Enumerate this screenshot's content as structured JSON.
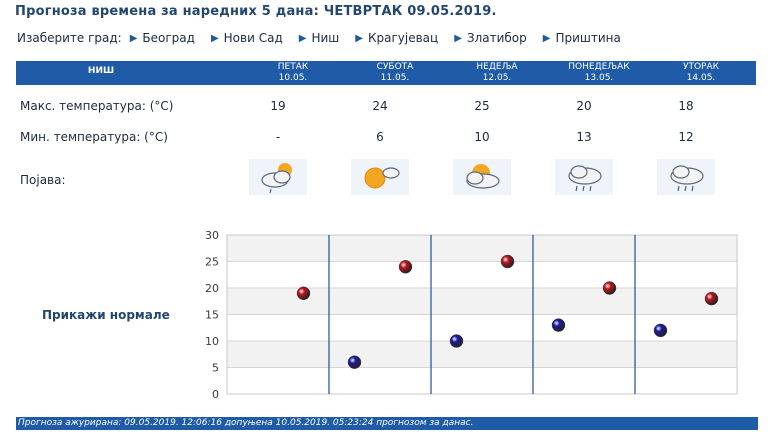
{
  "title": "Прогноза времена за наредних 5 дана: ЧЕТВРТАК  09.05.2019.",
  "city_select": {
    "label": "Изаберите град:",
    "cities": [
      "Београд",
      "Нови Сад",
      "Ниш",
      "Крагујевац",
      "Златибор",
      "Приштина"
    ]
  },
  "table": {
    "city": "НИШ",
    "days": [
      {
        "name": "ПЕТАК",
        "date": "10.05.",
        "max": "19",
        "min": "-",
        "icon": "sun-cloud-drizzle-icon"
      },
      {
        "name": "СУБОТА",
        "date": "11.05.",
        "max": "24",
        "min": "6",
        "icon": "sun-small-cloud-icon"
      },
      {
        "name": "НЕДЕЉА",
        "date": "12.05.",
        "max": "25",
        "min": "10",
        "icon": "sun-behind-cloud-icon"
      },
      {
        "name": "ПОНЕДЕЉАК",
        "date": "13.05.",
        "max": "20",
        "min": "13",
        "icon": "cloud-rain-icon"
      },
      {
        "name": "УТОРАК",
        "date": "14.05.",
        "max": "18",
        "min": "12",
        "icon": "cloud-rain-icon"
      }
    ],
    "max_label": "Макс. температура: (°C)",
    "min_label": "Мин. температура: (°C)",
    "phenomena_label": "Појава:"
  },
  "show_normals": "Прикажи нормале",
  "chart_data": {
    "type": "scatter",
    "categories": [
      "10.05.",
      "11.05.",
      "12.05.",
      "13.05.",
      "14.05."
    ],
    "series": [
      {
        "values": [
          19,
          24,
          25,
          20,
          18
        ],
        "color": "#c0141c"
      },
      {
        "values": [
          null,
          6,
          10,
          13,
          12
        ],
        "color": "#1a1aa8"
      }
    ],
    "ylim": [
      0,
      30
    ],
    "yticks": [
      0,
      5,
      10,
      15,
      20,
      25,
      30
    ],
    "grid": true
  },
  "footer": "Прогноза ажурирана:  09.05.2019. 12:06:16 допуњена 10.05.2019. 05:23:24 прогнозом за данас."
}
